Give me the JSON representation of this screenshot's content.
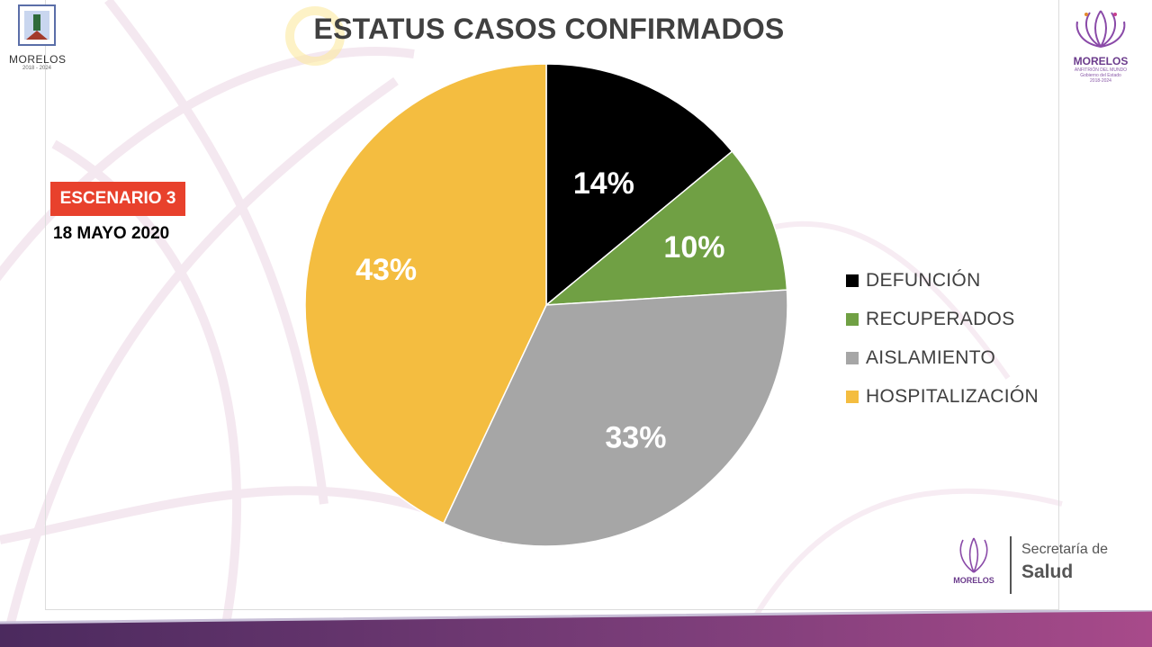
{
  "header": {
    "title": "ESTATUS CASOS CONFIRMADOS"
  },
  "sidebar": {
    "scenario": "ESCENARIO 3",
    "date": "18 MAYO 2020"
  },
  "logos": {
    "left_name": "MORELOS",
    "left_years": "2018 - 2024",
    "right_name": "MORELOS",
    "right_tagline": "ANFITRIÓN DEL MUNDO",
    "right_sub": "Gobierno del Estado",
    "right_years": "2018-2024",
    "salud_line1": "Secretaría de",
    "salud_line2": "Salud"
  },
  "colors": {
    "accent_red": "#e8412c",
    "brand_purple": "#6b3b8c"
  },
  "chart_data": {
    "type": "pie",
    "title": "ESTATUS CASOS CONFIRMADOS",
    "categories": [
      "DEFUNCIÓN",
      "RECUPERADOS",
      "AISLAMIENTO",
      "HOSPITALIZACIÓN"
    ],
    "values": [
      14,
      10,
      33,
      43
    ],
    "labels": [
      "14%",
      "10%",
      "33%",
      "43%"
    ],
    "colors": [
      "#000000",
      "#70a044",
      "#a6a6a6",
      "#f4bd40"
    ],
    "legend_position": "right",
    "start_angle": "12 o'clock, clockwise"
  }
}
